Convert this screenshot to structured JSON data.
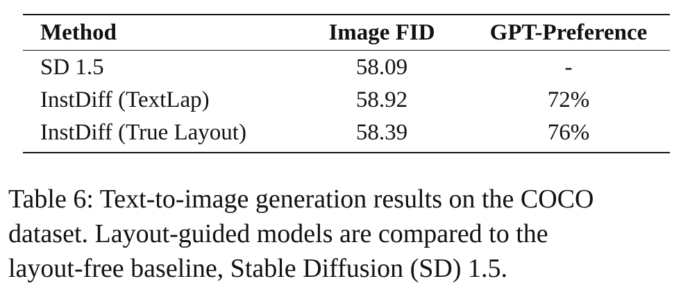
{
  "table": {
    "headers": [
      "Method",
      "Image FID",
      "GPT-Preference"
    ],
    "rows": [
      [
        "SD 1.5",
        "58.09",
        "-"
      ],
      [
        "InstDiff (TextLap)",
        "58.92",
        "72%"
      ],
      [
        "InstDiff (True Layout)",
        "58.39",
        "76%"
      ]
    ]
  },
  "caption": {
    "lines": [
      "Table 6: Text-to-image generation results on the COCO",
      "dataset.  Layout-guided models are compared to the",
      "layout-free baseline, Stable Diffusion (SD) 1.5."
    ]
  }
}
